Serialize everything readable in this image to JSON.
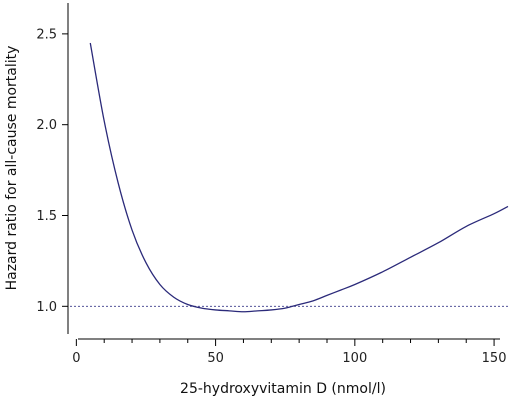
{
  "chart_data": {
    "type": "line",
    "xlabel": "25-hydroxyvitamin D (nmol/l)",
    "ylabel": "Hazard ratio for all-cause mortality",
    "xlim": [
      -3,
      155
    ],
    "ylim": [
      0.82,
      2.67
    ],
    "x_ticks_major": [
      0,
      50,
      100,
      150
    ],
    "x_ticks_minor": [
      10,
      20,
      30,
      40,
      60,
      70,
      80,
      90,
      110,
      120,
      130,
      140
    ],
    "x_tick_labels": [
      "0",
      "50",
      "100",
      "150"
    ],
    "y_ticks": [
      1.0,
      1.5,
      2.0,
      2.5
    ],
    "y_tick_labels": [
      "1.0",
      "1.5",
      "2.0",
      "2.5"
    ],
    "reference_line": {
      "y": 1.0,
      "style": "dotted"
    },
    "series": [
      {
        "color": "#2b2a7a",
        "x": [
          5,
          10,
          15,
          20,
          25,
          30,
          35,
          40,
          45,
          50,
          55,
          60,
          65,
          70,
          75,
          80,
          85,
          90,
          95,
          100,
          110,
          120,
          130,
          140,
          150,
          155
        ],
        "y": [
          2.45,
          2.02,
          1.68,
          1.42,
          1.24,
          1.12,
          1.05,
          1.01,
          0.99,
          0.98,
          0.975,
          0.97,
          0.975,
          0.98,
          0.99,
          1.01,
          1.03,
          1.06,
          1.09,
          1.12,
          1.19,
          1.27,
          1.35,
          1.44,
          1.51,
          1.55
        ]
      }
    ]
  }
}
